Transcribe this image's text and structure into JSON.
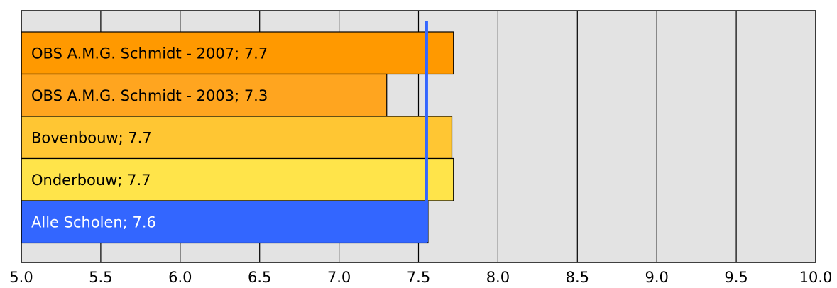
{
  "chart_data": {
    "type": "bar",
    "orientation": "horizontal",
    "xlim": [
      5.0,
      10.0
    ],
    "x_ticks": [
      "5.0",
      "5.5",
      "6.0",
      "6.5",
      "7.0",
      "7.5",
      "8.0",
      "8.5",
      "9.0",
      "9.5",
      "10.0"
    ],
    "grid": true,
    "bars": [
      {
        "label": "OBS A.M.G. Schmidt - 2007; 7.7",
        "value": 7.72,
        "color": "#FF9900",
        "text_color": "#000000"
      },
      {
        "label": "OBS A.M.G. Schmidt - 2003; 7.3",
        "value": 7.3,
        "color": "#FFA51F",
        "text_color": "#000000"
      },
      {
        "label": "Bovenbouw; 7.7",
        "value": 7.71,
        "color": "#FFC633",
        "text_color": "#000000"
      },
      {
        "label": "Onderbouw; 7.7",
        "value": 7.72,
        "color": "#FFE44A",
        "text_color": "#000000"
      },
      {
        "label": "Alle Scholen; 7.6",
        "value": 7.56,
        "color": "#3366FF",
        "text_color": "#FFFFFF"
      }
    ],
    "reference_line": {
      "value": 7.55,
      "color": "#3366FF"
    },
    "plot_background": "#E3E3E3"
  }
}
